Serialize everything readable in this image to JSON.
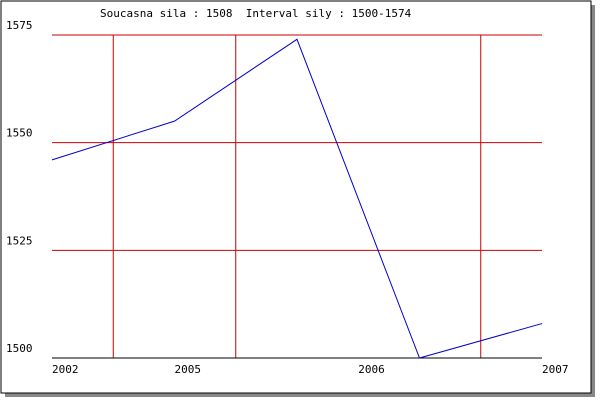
{
  "chart_data": {
    "type": "line",
    "title": "Soucasna sila : 1508  Interval sily : 1500-1574",
    "x": [
      0,
      1,
      2,
      3,
      4
    ],
    "series": [
      {
        "color": "#0000cc",
        "values": [
          1546,
          1555,
          1574,
          1500,
          1508
        ]
      }
    ],
    "xlim": [
      0,
      4
    ],
    "xticks": [
      {
        "value": 0,
        "label": "2002"
      },
      {
        "value": 1,
        "label": "2005"
      },
      {
        "value": 2.5,
        "label": "2006"
      },
      {
        "value": 4,
        "label": "2007"
      }
    ],
    "xgrid": [
      0.5,
      1.5,
      3.5
    ],
    "ylim": [
      1500,
      1575
    ],
    "yticks": [
      1500,
      1525,
      1550,
      1575
    ],
    "grid": true,
    "grid_color": "#cc0000"
  }
}
